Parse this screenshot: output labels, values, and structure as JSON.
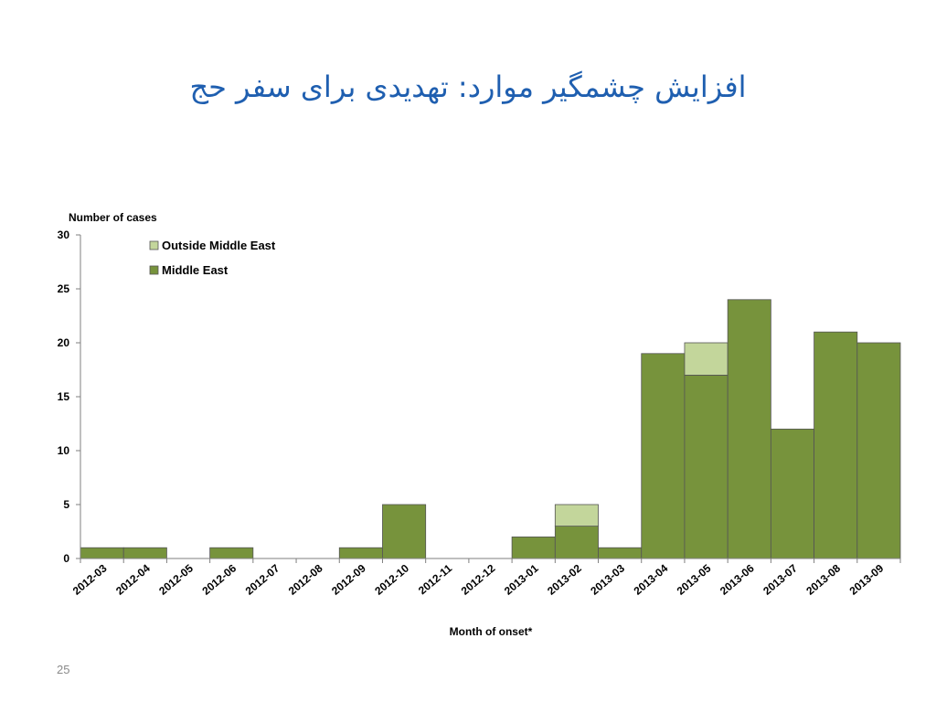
{
  "slide": {
    "title": "افزایش چشمگیر موارد: تهدیدی برای سفر حج",
    "page_number": "25"
  },
  "chart_data": {
    "type": "bar",
    "stacked": true,
    "categories": [
      "2012-03",
      "2012-04",
      "2012-05",
      "2012-06",
      "2012-07",
      "2012-08",
      "2012-09",
      "2012-10",
      "2012-11",
      "2012-12",
      "2013-01",
      "2013-02",
      "2013-03",
      "2013-04",
      "2013-05",
      "2013-06",
      "2013-07",
      "2013-08",
      "2013-09"
    ],
    "series": [
      {
        "name": "Middle East",
        "color": "#77933c",
        "values": [
          1,
          1,
          0,
          1,
          0,
          0,
          1,
          5,
          0,
          0,
          2,
          3,
          1,
          19,
          17,
          24,
          12,
          21,
          20
        ]
      },
      {
        "name": "Outside Middle East",
        "color": "#c3d69b",
        "values": [
          0,
          0,
          0,
          0,
          0,
          0,
          0,
          0,
          0,
          0,
          0,
          2,
          0,
          0,
          3,
          0,
          0,
          0,
          0
        ]
      }
    ],
    "legend": [
      "Outside Middle East",
      "Middle East"
    ],
    "legend_position": "top-left",
    "ylabel": "Number of cases",
    "xlabel": "Month of onset*",
    "ylim": [
      0,
      30
    ],
    "yticks": [
      0,
      5,
      10,
      15,
      20,
      25,
      30
    ],
    "grid": false
  }
}
